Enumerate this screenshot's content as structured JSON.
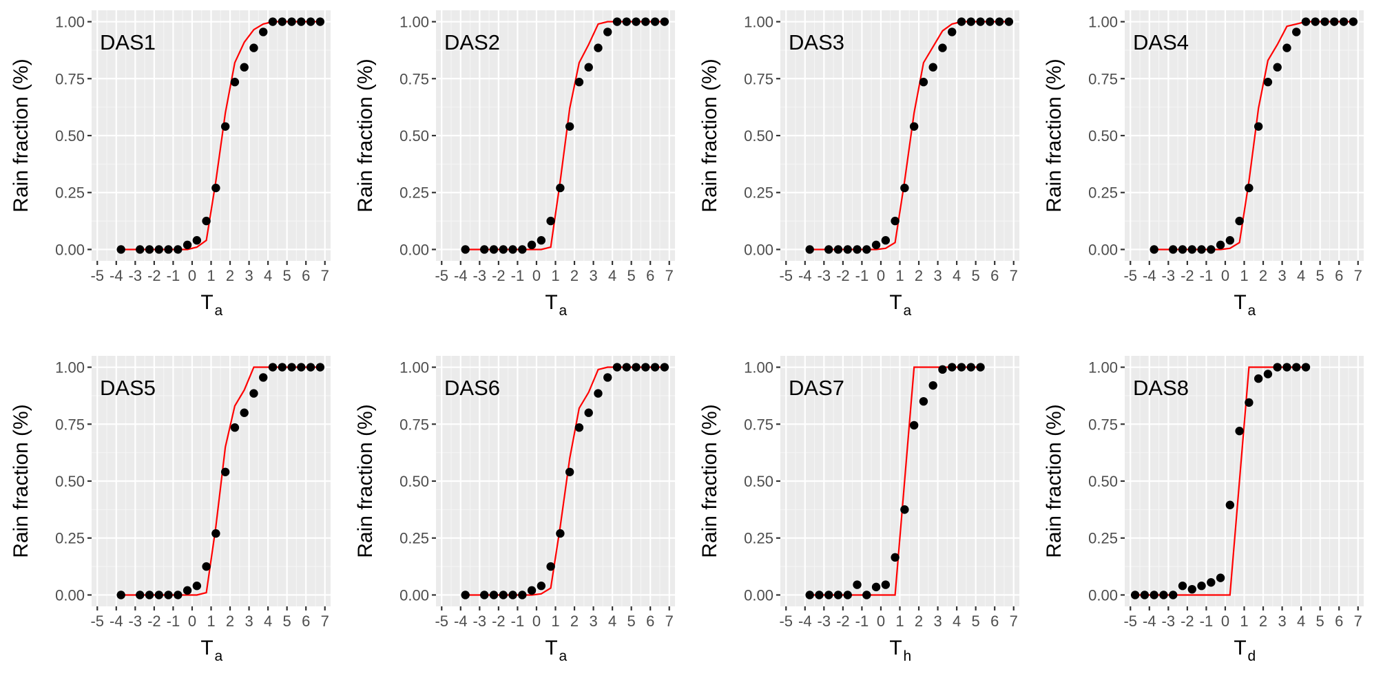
{
  "figure": {
    "ylabel": "Rain fraction (%)",
    "x_ticks": [
      "-5",
      "-4",
      "-3",
      "-2",
      "-1",
      "0",
      "1",
      "2",
      "3",
      "4",
      "5",
      "6",
      "7"
    ],
    "y_ticks": [
      "0.00",
      "0.25",
      "0.50",
      "0.75",
      "1.00"
    ],
    "colors": {
      "panel_bg": "#ebebeb",
      "grid": "#ffffff",
      "points": "#000000",
      "fit_line": "#ff0000",
      "tick_text": "#4d4d4d"
    }
  },
  "chart_data": [
    {
      "type": "scatter",
      "label": "DAS1",
      "xlabel_main": "T",
      "xlabel_sub": "a",
      "xlim": [
        -5.3,
        7.3
      ],
      "ylim": [
        -0.05,
        1.05
      ],
      "points": {
        "x": [
          -3.75,
          -2.75,
          -2.25,
          -1.75,
          -1.25,
          -0.75,
          -0.25,
          0.25,
          0.75,
          1.25,
          1.75,
          2.25,
          2.75,
          3.25,
          3.75,
          4.25,
          4.75,
          5.25,
          5.75,
          6.25,
          6.75
        ],
        "y": [
          0,
          0,
          0,
          0,
          0,
          0,
          0.02,
          0.04,
          0.125,
          0.27,
          0.54,
          0.735,
          0.8,
          0.885,
          0.955,
          1,
          1,
          1,
          1,
          1,
          1
        ]
      },
      "fit_line": {
        "x": [
          -3.75,
          -0.25,
          0.25,
          0.75,
          1.25,
          1.75,
          2.25,
          2.75,
          3.25,
          3.75,
          4.25,
          6.75
        ],
        "y": [
          0,
          0,
          0.01,
          0.04,
          0.3,
          0.6,
          0.82,
          0.91,
          0.965,
          0.99,
          1,
          1
        ]
      }
    },
    {
      "type": "scatter",
      "label": "DAS2",
      "xlabel_main": "T",
      "xlabel_sub": "a",
      "xlim": [
        -5.3,
        7.3
      ],
      "ylim": [
        -0.05,
        1.05
      ],
      "points": {
        "x": [
          -3.75,
          -2.75,
          -2.25,
          -1.75,
          -1.25,
          -0.75,
          -0.25,
          0.25,
          0.75,
          1.25,
          1.75,
          2.25,
          2.75,
          3.25,
          3.75,
          4.25,
          4.75,
          5.25,
          5.75,
          6.25,
          6.75
        ],
        "y": [
          0,
          0,
          0,
          0,
          0,
          0,
          0.02,
          0.04,
          0.125,
          0.27,
          0.54,
          0.735,
          0.8,
          0.885,
          0.955,
          1,
          1,
          1,
          1,
          1,
          1
        ]
      },
      "fit_line": {
        "x": [
          -3.75,
          -0.25,
          0.25,
          0.75,
          1.25,
          1.75,
          2.25,
          2.75,
          3.25,
          3.75,
          4.25,
          6.75
        ],
        "y": [
          0,
          0,
          0,
          0.01,
          0.3,
          0.62,
          0.82,
          0.9,
          0.99,
          1,
          1,
          1
        ]
      }
    },
    {
      "type": "scatter",
      "label": "DAS3",
      "xlabel_main": "T",
      "xlabel_sub": "a",
      "xlim": [
        -5.3,
        7.3
      ],
      "ylim": [
        -0.05,
        1.05
      ],
      "points": {
        "x": [
          -3.75,
          -2.75,
          -2.25,
          -1.75,
          -1.25,
          -0.75,
          -0.25,
          0.25,
          0.75,
          1.25,
          1.75,
          2.25,
          2.75,
          3.25,
          3.75,
          4.25,
          4.75,
          5.25,
          5.75,
          6.25,
          6.75
        ],
        "y": [
          0,
          0,
          0,
          0,
          0,
          0,
          0.02,
          0.04,
          0.125,
          0.27,
          0.54,
          0.735,
          0.8,
          0.885,
          0.955,
          1,
          1,
          1,
          1,
          1,
          1
        ]
      },
      "fit_line": {
        "x": [
          -3.75,
          -0.25,
          0.25,
          0.75,
          1.25,
          1.75,
          2.25,
          2.75,
          3.25,
          3.75,
          4.25,
          6.75
        ],
        "y": [
          0,
          0,
          0.005,
          0.03,
          0.3,
          0.6,
          0.82,
          0.89,
          0.96,
          0.99,
          1,
          1
        ]
      }
    },
    {
      "type": "scatter",
      "label": "DAS4",
      "xlabel_main": "T",
      "xlabel_sub": "a",
      "xlim": [
        -5.3,
        7.3
      ],
      "ylim": [
        -0.05,
        1.05
      ],
      "points": {
        "x": [
          -3.75,
          -2.75,
          -2.25,
          -1.75,
          -1.25,
          -0.75,
          -0.25,
          0.25,
          0.75,
          1.25,
          1.75,
          2.25,
          2.75,
          3.25,
          3.75,
          4.25,
          4.75,
          5.25,
          5.75,
          6.25,
          6.75
        ],
        "y": [
          0,
          0,
          0,
          0,
          0,
          0,
          0.02,
          0.04,
          0.125,
          0.27,
          0.54,
          0.735,
          0.8,
          0.885,
          0.955,
          1,
          1,
          1,
          1,
          1,
          1
        ]
      },
      "fit_line": {
        "x": [
          -3.75,
          -0.25,
          0.25,
          0.75,
          1.25,
          1.75,
          2.25,
          2.75,
          3.25,
          3.75,
          4.25,
          6.75
        ],
        "y": [
          0,
          0,
          0.005,
          0.03,
          0.3,
          0.62,
          0.83,
          0.9,
          0.98,
          0.99,
          1,
          1
        ]
      }
    },
    {
      "type": "scatter",
      "label": "DAS5",
      "xlabel_main": "T",
      "xlabel_sub": "a",
      "xlim": [
        -5.3,
        7.3
      ],
      "ylim": [
        -0.05,
        1.05
      ],
      "points": {
        "x": [
          -3.75,
          -2.75,
          -2.25,
          -1.75,
          -1.25,
          -0.75,
          -0.25,
          0.25,
          0.75,
          1.25,
          1.75,
          2.25,
          2.75,
          3.25,
          3.75,
          4.25,
          4.75,
          5.25,
          5.75,
          6.25,
          6.75
        ],
        "y": [
          0,
          0,
          0,
          0,
          0,
          0,
          0.02,
          0.04,
          0.125,
          0.27,
          0.54,
          0.735,
          0.8,
          0.885,
          0.955,
          1,
          1,
          1,
          1,
          1,
          1
        ]
      },
      "fit_line": {
        "x": [
          -3.75,
          -0.25,
          0.25,
          0.75,
          1.25,
          1.75,
          2.25,
          2.75,
          3.25,
          3.75,
          4.25,
          6.75
        ],
        "y": [
          0,
          0,
          0,
          0.01,
          0.3,
          0.65,
          0.83,
          0.9,
          1,
          1,
          1,
          1
        ]
      }
    },
    {
      "type": "scatter",
      "label": "DAS6",
      "xlabel_main": "T",
      "xlabel_sub": "a",
      "xlim": [
        -5.3,
        7.3
      ],
      "ylim": [
        -0.05,
        1.05
      ],
      "points": {
        "x": [
          -3.75,
          -2.75,
          -2.25,
          -1.75,
          -1.25,
          -0.75,
          -0.25,
          0.25,
          0.75,
          1.25,
          1.75,
          2.25,
          2.75,
          3.25,
          3.75,
          4.25,
          4.75,
          5.25,
          5.75,
          6.25,
          6.75
        ],
        "y": [
          0,
          0,
          0,
          0,
          0,
          0,
          0.02,
          0.04,
          0.125,
          0.27,
          0.54,
          0.735,
          0.8,
          0.885,
          0.955,
          1,
          1,
          1,
          1,
          1,
          1
        ]
      },
      "fit_line": {
        "x": [
          -3.75,
          -0.25,
          0.25,
          0.75,
          1.25,
          1.75,
          2.25,
          2.75,
          3.25,
          3.75,
          4.25,
          6.75
        ],
        "y": [
          0,
          0,
          0.005,
          0.03,
          0.3,
          0.6,
          0.82,
          0.89,
          0.99,
          1,
          1,
          1
        ]
      }
    },
    {
      "type": "scatter",
      "label": "DAS7",
      "xlabel_main": "T",
      "xlabel_sub": "h",
      "xlim": [
        -5.3,
        7.3
      ],
      "ylim": [
        -0.05,
        1.05
      ],
      "points": {
        "x": [
          -3.75,
          -3.25,
          -2.75,
          -2.25,
          -1.75,
          -1.25,
          -0.75,
          -0.25,
          0.25,
          0.75,
          1.25,
          1.75,
          2.25,
          2.75,
          3.25,
          3.75,
          4.25,
          4.75,
          5.25
        ],
        "y": [
          0,
          0,
          0,
          0,
          0,
          0.045,
          0,
          0.035,
          0.045,
          0.165,
          0.375,
          0.745,
          0.85,
          0.92,
          0.99,
          1,
          1,
          1,
          1
        ]
      },
      "fit_line": {
        "x": [
          -3.75,
          0.75,
          1.75,
          5.25
        ],
        "y": [
          0,
          0,
          1,
          1
        ]
      }
    },
    {
      "type": "scatter",
      "label": "DAS8",
      "xlabel_main": "T",
      "xlabel_sub": "d",
      "xlim": [
        -5.3,
        7.3
      ],
      "ylim": [
        -0.05,
        1.05
      ],
      "points": {
        "x": [
          -4.75,
          -4.25,
          -3.75,
          -3.25,
          -2.75,
          -2.25,
          -1.75,
          -1.25,
          -0.75,
          -0.25,
          0.25,
          0.75,
          1.25,
          1.75,
          2.25,
          2.75,
          3.25,
          3.75,
          4.25
        ],
        "y": [
          0,
          0,
          0,
          0,
          0,
          0.04,
          0.025,
          0.04,
          0.055,
          0.075,
          0.395,
          0.72,
          0.845,
          0.95,
          0.97,
          1,
          1,
          1,
          1
        ],
        "note": "points shown begin at x=-4.75; first five points are at y=0"
      },
      "fit_line": {
        "x": [
          -4.75,
          0.25,
          1.25,
          4.25
        ],
        "y": [
          0,
          0,
          1,
          1
        ]
      }
    }
  ]
}
